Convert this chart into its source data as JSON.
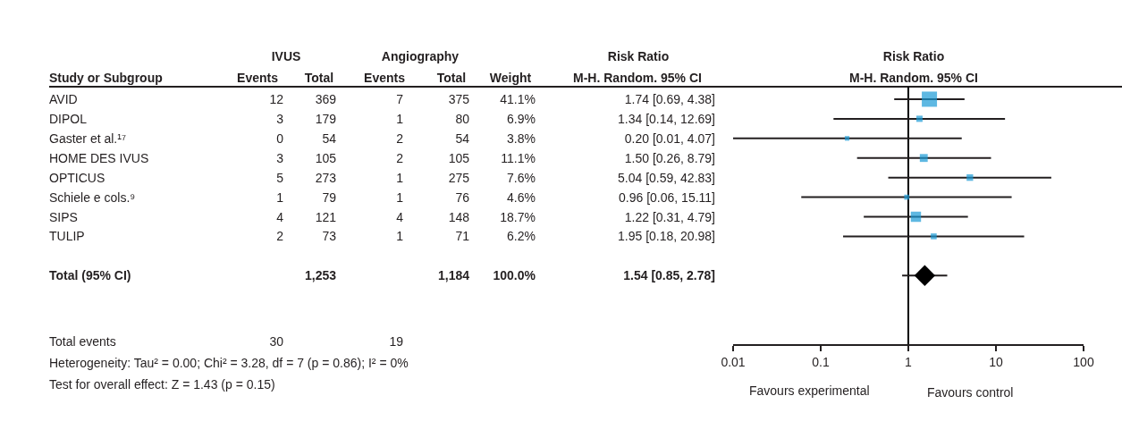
{
  "chart_data": [
    {
      "type": "other",
      "annotations": [
        "IVUS",
        "Angiography",
        "Risk Ratio",
        "Study or Subgroup",
        "Events",
        "Total",
        "Events",
        "Total",
        "Weight",
        "M-H. Random. 95% CI",
        "AVID",
        "12",
        "369",
        "7",
        "375",
        "41.1%",
        "1.74 [0.69, 4.38]",
        "DIPOL",
        "3",
        "179",
        "1",
        "80",
        "6.9%",
        "1.34 [0.14, 12.69]",
        "Gaster et al.¹⁷",
        "0",
        "54",
        "2",
        "54",
        "3.8%",
        "0.20 [0.01, 4.07]",
        "HOME DES IVUS",
        "3",
        "105",
        "2",
        "105",
        "11.1%",
        "1.50 [0.26, 8.79]",
        "OPTICUS",
        "5",
        "273",
        "1",
        "275",
        "7.6%",
        "5.04 [0.59, 42.83]",
        "Schiele e cols.⁹",
        "1",
        "79",
        "1",
        "76",
        "4.6%",
        "0.96 [0.06, 15.11]",
        "SIPS",
        "4",
        "121",
        "4",
        "148",
        "18.7%",
        "1.22 [0.31, 4.79]",
        "TULIP",
        "2",
        "73",
        "1",
        "71",
        "6.2%",
        "1.95 [0.18, 20.98]",
        "Total (95% CI)",
        "1,253",
        "1,184",
        "100.0%",
        "1.54 [0.85, 2.78]",
        "Total events",
        "30",
        "19",
        "Heterogeneity: Tau² = 0.00; Chi² = 3.28, df = 7 (p = 0.86); I² = 0%",
        "Test for overall effect: Z = 1.43 (p = 0.15)"
      ]
    },
    {
      "type": "scatter",
      "orientation": "horizontal",
      "log": "x",
      "tick_labels": "x",
      "marker": "square",
      "title": "Risk Ratio",
      "subtitle": "M-H. Random. 95% CI",
      "categories": [
        null,
        null,
        null,
        null,
        null,
        null,
        null,
        null,
        null,
        null,
        null,
        null,
        null
      ],
      "series": [
        {
          "type": "bubble",
          "color": "#1a9ad6",
          "values": [
            1.74,
            1.34,
            0.2,
            1.5,
            5.04,
            0.96,
            1.22,
            1.95,
            null,
            null,
            null,
            null,
            null
          ],
          "errors": [
            [
              0.69,
              4.38
            ],
            [
              0.14,
              12.69
            ],
            [
              0.01,
              4.07
            ],
            [
              0.26,
              8.79
            ],
            [
              0.59,
              42.83
            ],
            [
              0.06,
              15.11
            ],
            [
              0.31,
              4.79
            ],
            [
              0.18,
              20.98
            ],
            null,
            null,
            null,
            null,
            null
          ],
          "sizes": [
            1,
            0.168,
            0.092,
            0.27,
            0.185,
            0.112,
            0.455,
            0.151,
            null,
            null,
            null,
            null,
            null
          ]
        },
        {
          "type": "scatter",
          "marker": "diamond",
          "color": "#000000",
          "values": [
            null,
            null,
            null,
            null,
            null,
            null,
            null,
            null,
            null,
            1.54,
            null,
            null,
            null
          ],
          "errors": [
            null,
            null,
            null,
            null,
            null,
            null,
            null,
            null,
            null,
            [
              0.85,
              2.78
            ],
            null,
            null,
            null
          ]
        }
      ],
      "xlim": [
        0.01,
        100
      ],
      "xticks": [
        0.01,
        0.1,
        1,
        10,
        100
      ],
      "ref_lines": [
        {
          "axis": "x",
          "value": 1,
          "color": "#000000"
        }
      ],
      "annotations": [
        "Favours experimental",
        "Favours control"
      ]
    }
  ]
}
